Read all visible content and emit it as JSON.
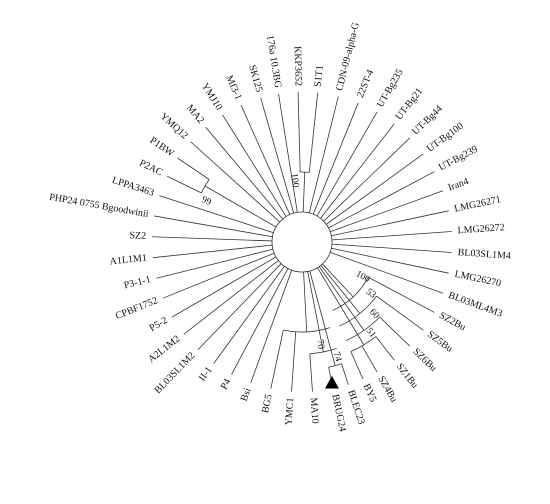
{
  "tree": {
    "taxa": [
      {
        "label": "KKP3652",
        "angle": 268.5
      },
      {
        "label": "S1T1",
        "angle": 276
      },
      {
        "label": "CDN-09-alpha-G",
        "angle": 284
      },
      {
        "label": "22ST-4",
        "angle": 292
      },
      {
        "label": "UT-Bg235",
        "angle": 300
      },
      {
        "label": "UT-Bg21",
        "angle": 308
      },
      {
        "label": "UT-Bg44",
        "angle": 316
      },
      {
        "label": "UT-Bg100",
        "angle": 324
      },
      {
        "label": "UT-Bg239",
        "angle": 332
      },
      {
        "label": "Iran4",
        "angle": 340
      },
      {
        "label": "LMG26271",
        "angle": 348
      },
      {
        "label": "LMG26272",
        "angle": 356
      },
      {
        "label": "BL03SL1M4",
        "angle": 4
      },
      {
        "label": "LMG26270",
        "angle": 12
      },
      {
        "label": "BL03ML4M3",
        "angle": 20
      },
      {
        "label": "SZ2Bu",
        "angle": 28
      },
      {
        "label": "SZ5Bu",
        "angle": 36
      },
      {
        "label": "SZ6Bu",
        "angle": 44
      },
      {
        "label": "SZ1Bu",
        "angle": 52
      },
      {
        "label": "SZ4Bu",
        "angle": 60
      },
      {
        "label": "BY5",
        "angle": 66
      },
      {
        "label": "BLEC23",
        "angle": 72
      },
      {
        "label": "BRUG24",
        "angle": 78
      },
      {
        "label": "MA10",
        "angle": 86
      },
      {
        "label": "YMC1",
        "angle": 94
      },
      {
        "label": "BG5",
        "angle": 102
      },
      {
        "label": "Bsi",
        "angle": 110
      },
      {
        "label": "P4",
        "angle": 118
      },
      {
        "label": "II-1",
        "angle": 126
      },
      {
        "label": "BL03SL1M2",
        "angle": 134
      },
      {
        "label": "A2L1M2",
        "angle": 142
      },
      {
        "label": "P5-2",
        "angle": 150
      },
      {
        "label": "CPBF1752",
        "angle": 158
      },
      {
        "label": "P3-1-1",
        "angle": 166
      },
      {
        "label": "A1L1M1",
        "angle": 174
      },
      {
        "label": "SZ2",
        "angle": 182
      },
      {
        "label": "PHP24 0755 Bgoodwinii",
        "angle": 190
      },
      {
        "label": "LPPA3463",
        "angle": 198
      },
      {
        "label": "P2AC",
        "angle": 206
      },
      {
        "label": "P1BW",
        "angle": 214
      },
      {
        "label": "YMQ12",
        "angle": 222
      },
      {
        "label": "MA2",
        "angle": 230
      },
      {
        "label": "YMJ10",
        "angle": 238
      },
      {
        "label": "Mf3-1",
        "angle": 246
      },
      {
        "label": "SK125",
        "angle": 254
      },
      {
        "label": "176a 10.3BG",
        "angle": 261
      }
    ],
    "bootstrap": [
      {
        "value": "100",
        "angle": 263
      },
      {
        "value": "99",
        "angle": 203
      },
      {
        "value": "100",
        "angle": 30
      },
      {
        "value": "53",
        "angle": 37
      },
      {
        "value": "60",
        "angle": 45
      },
      {
        "value": "51",
        "angle": 53
      },
      {
        "value": "70",
        "angle": 80
      },
      {
        "value": "74",
        "angle": 73
      }
    ],
    "marker": {
      "shape": "filled-triangle",
      "taxon": "BRUG24",
      "color": "#000000"
    },
    "branch_color": "#333333",
    "label_color": "#111111"
  }
}
